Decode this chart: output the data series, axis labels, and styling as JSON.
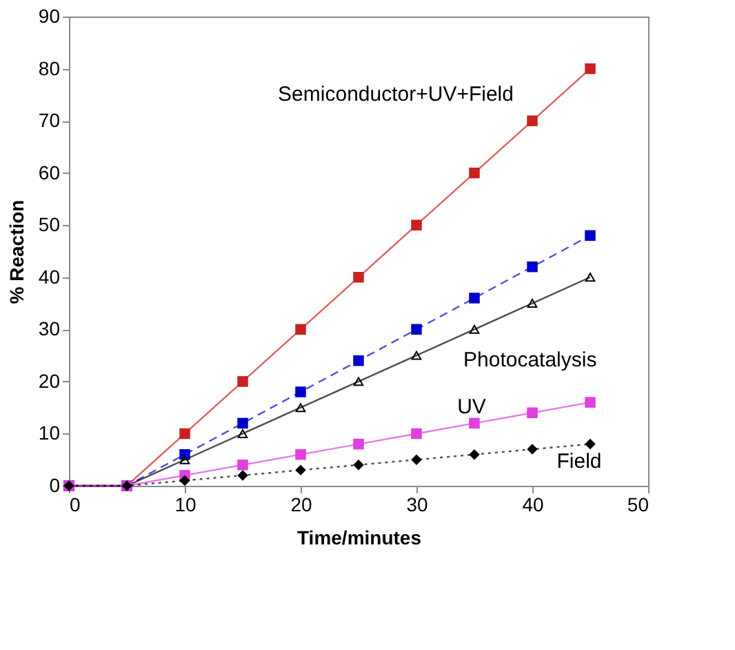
{
  "chart_data": {
    "type": "line",
    "xlabel": "Time/minutes",
    "ylabel": "% Reaction",
    "x": [
      0,
      5,
      10,
      15,
      20,
      25,
      30,
      35,
      40,
      45
    ],
    "xlim": [
      0,
      50
    ],
    "xticks": [
      0,
      10,
      20,
      30,
      40,
      50
    ],
    "ylim": [
      0,
      90
    ],
    "yticks": [
      0,
      10,
      20,
      30,
      40,
      50,
      60,
      70,
      80,
      90
    ],
    "grid": false,
    "series": [
      {
        "name": "Semiconductor+UV+Field",
        "color": "#cc2020",
        "marker": "square",
        "line_style": "solid",
        "values": [
          0,
          0,
          10,
          20,
          30,
          40,
          50,
          60,
          70,
          80
        ]
      },
      {
        "color": "#0000cc",
        "marker": "square",
        "line_style": "dashed",
        "values": [
          0,
          0,
          6,
          12,
          18,
          24,
          30,
          36,
          42,
          48
        ]
      },
      {
        "name": "Photocatalysis",
        "color": "#000000",
        "marker": "triangle",
        "line_style": "solid",
        "values": [
          0,
          0,
          5,
          10,
          15,
          20,
          25,
          30,
          35,
          40
        ]
      },
      {
        "name": "UV",
        "color": "#e040e0",
        "marker": "square",
        "line_style": "solid",
        "values": [
          0,
          0,
          2,
          4,
          6,
          8,
          10,
          12,
          14,
          16
        ]
      },
      {
        "name": "Field",
        "color": "#000000",
        "marker": "diamond",
        "line_style": "dotted",
        "values": [
          0,
          0,
          1,
          2,
          3,
          4,
          5,
          6,
          7,
          8
        ]
      }
    ]
  }
}
